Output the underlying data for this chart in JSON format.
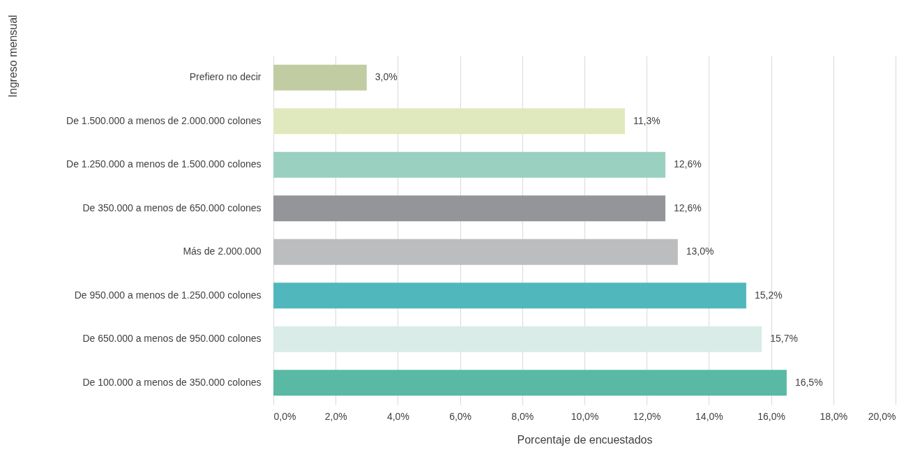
{
  "chart_data": {
    "type": "bar",
    "orientation": "horizontal",
    "xlabel": "Porcentaje de encuestados",
    "ylabel": "Ingreso mensual",
    "categories": [
      "Prefiero no decir",
      "De 1.500.000 a menos de 2.000.000 colones",
      "De 1.250.000 a menos de 1.500.000 colones",
      "De 350.000 a menos de 650.000 colones",
      "Más de 2.000.000",
      "De 950.000 a menos de 1.250.000 colones",
      "De 650.000 a menos de 950.000 colones",
      "De 100.000 a menos de 350.000 colones"
    ],
    "values": [
      3.0,
      11.3,
      12.6,
      12.6,
      13.0,
      15.2,
      15.7,
      16.5
    ],
    "value_labels": [
      "3,0%",
      "11,3%",
      "12,6%",
      "12,6%",
      "13,0%",
      "15,2%",
      "15,7%",
      "16,5%"
    ],
    "colors": [
      "#c2cca3",
      "#dfe9bd",
      "#99d0c0",
      "#939598",
      "#bcbdbf",
      "#50b8bc",
      "#d9ece8",
      "#59b9a4"
    ],
    "xlim": [
      0,
      20
    ],
    "xticks": [
      {
        "value": 0,
        "label": "0,0%"
      },
      {
        "value": 2,
        "label": "2,0%"
      },
      {
        "value": 4,
        "label": "4,0%"
      },
      {
        "value": 6,
        "label": "6,0%"
      },
      {
        "value": 8,
        "label": "8,0%"
      },
      {
        "value": 10,
        "label": "10,0%"
      },
      {
        "value": 12,
        "label": "12,0%"
      },
      {
        "value": 14,
        "label": "14,0%"
      },
      {
        "value": 16,
        "label": "16,0%"
      },
      {
        "value": 18,
        "label": "18,0%"
      },
      {
        "value": 20,
        "label": "20,0%"
      }
    ],
    "grid": "x"
  }
}
